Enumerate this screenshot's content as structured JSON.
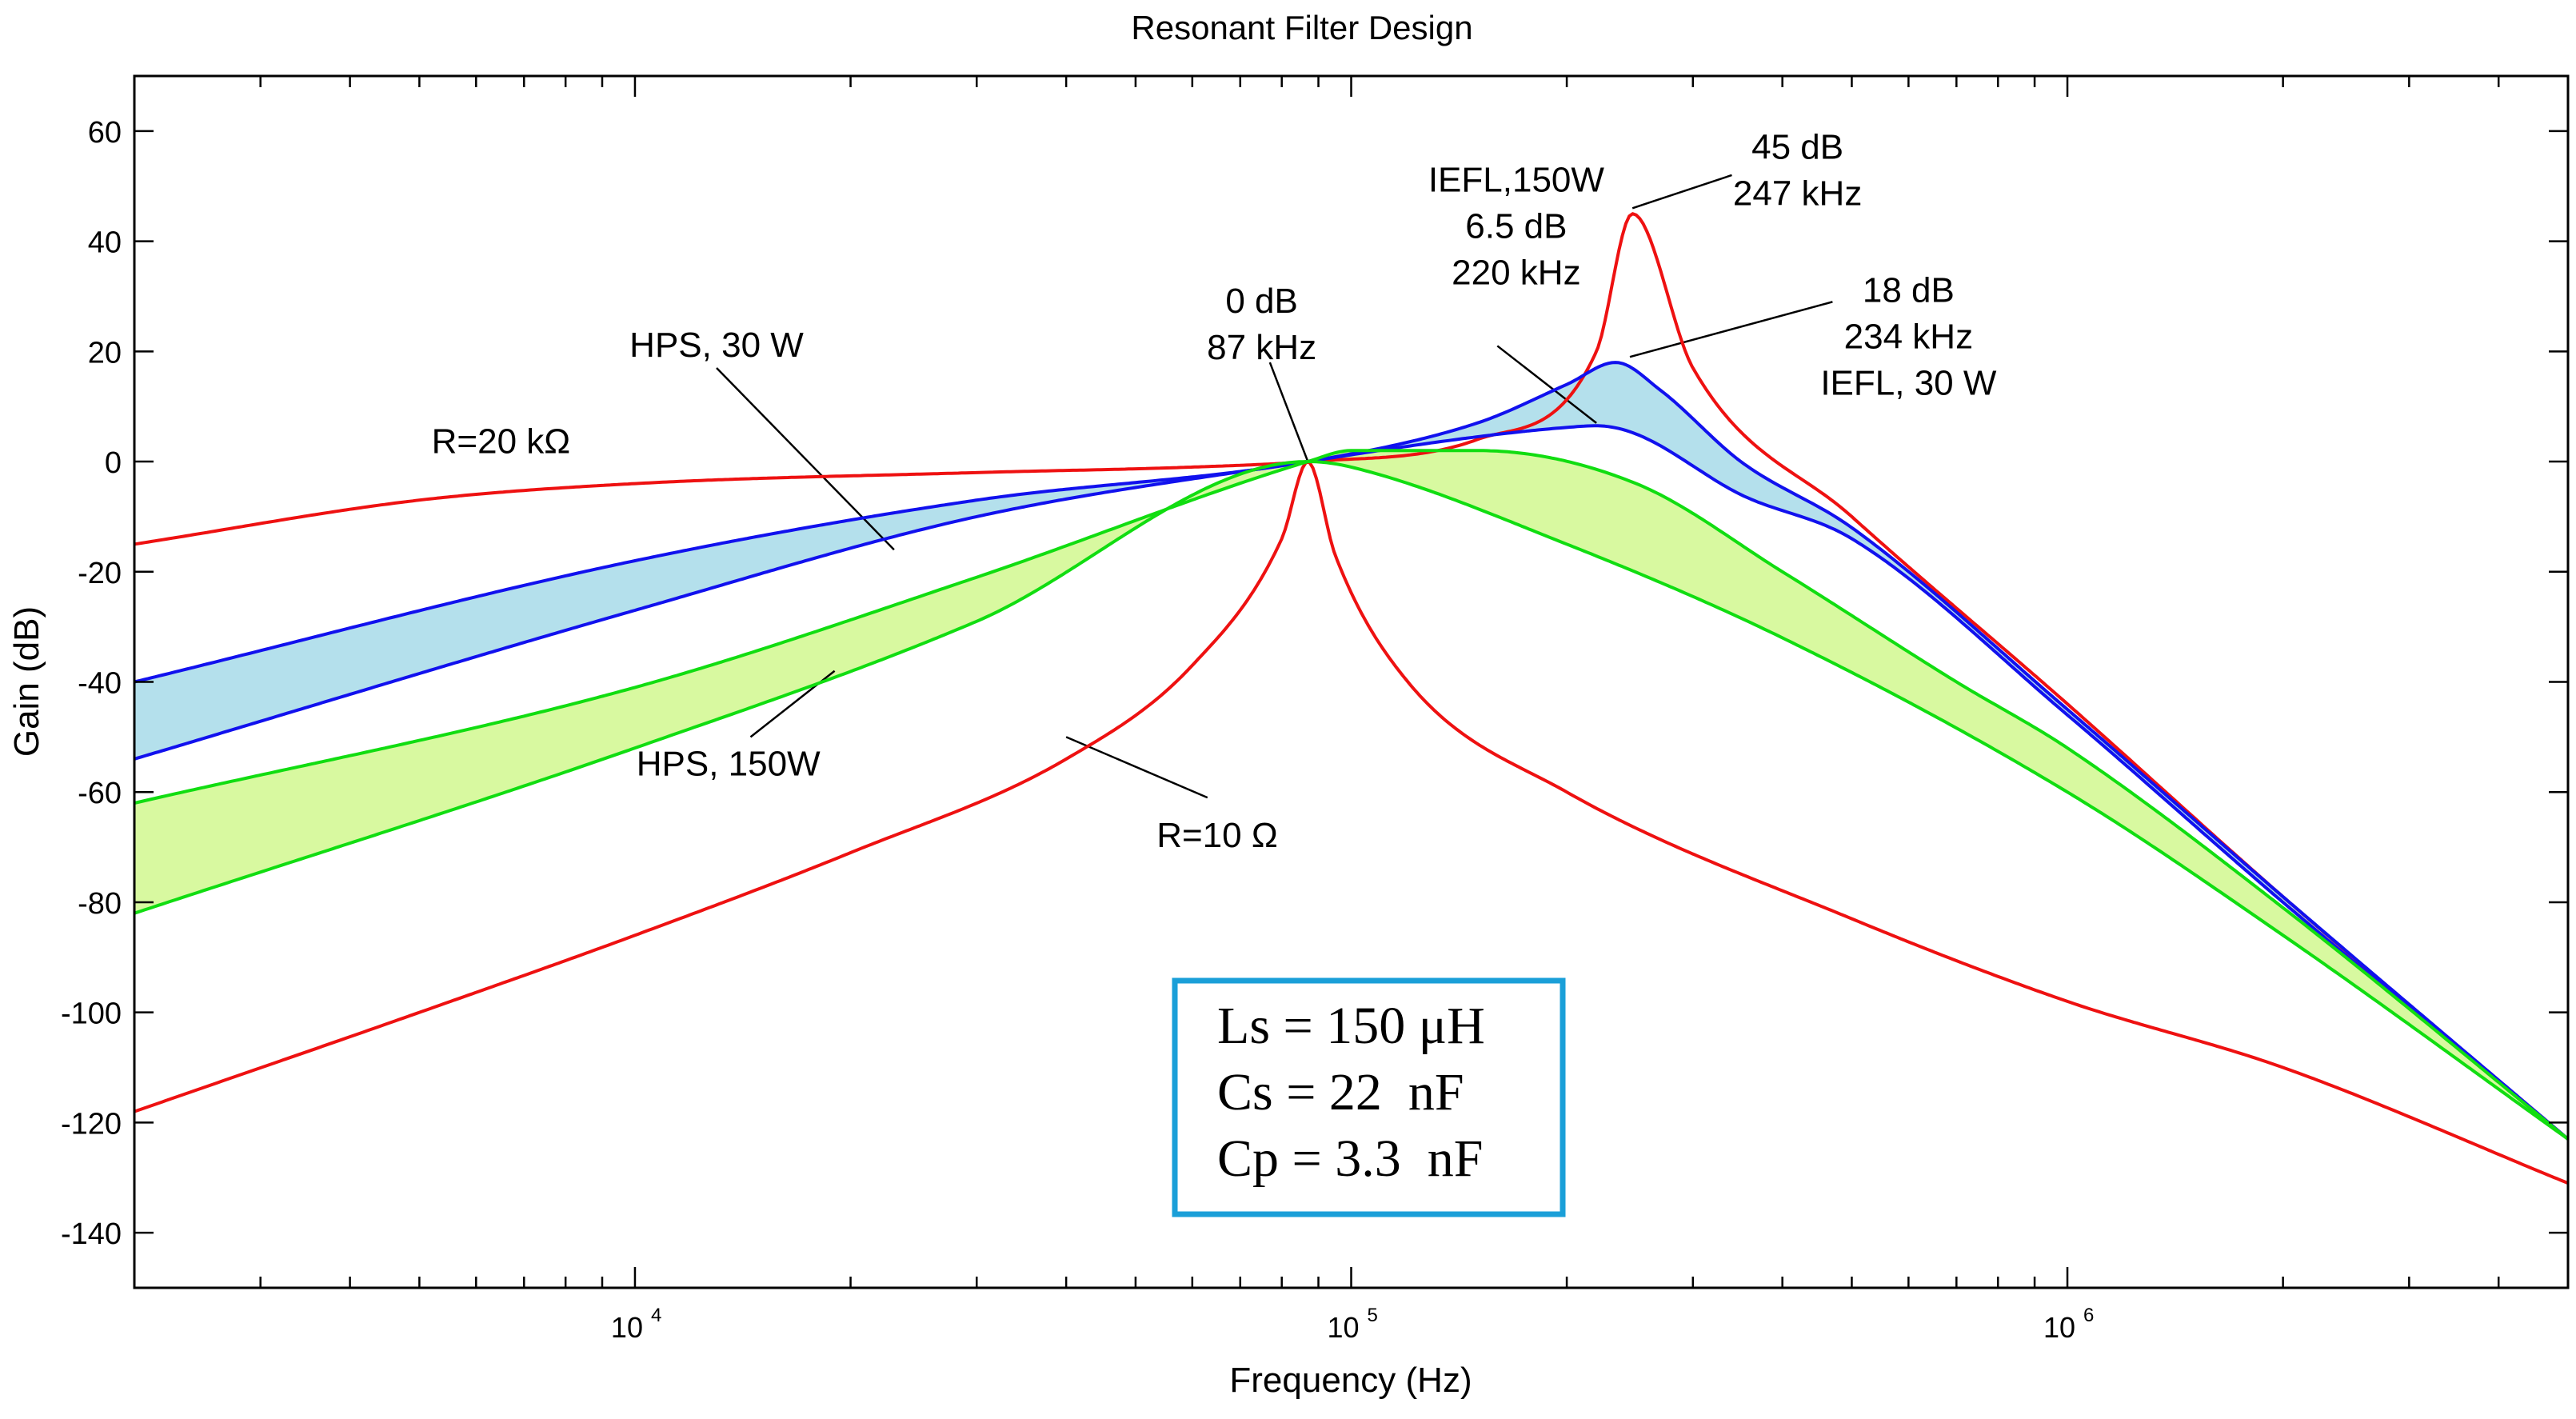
{
  "chart_data": {
    "type": "line",
    "title": "Resonant Filter Design",
    "xlabel": "Frequency (Hz)",
    "ylabel": "Gain (dB)",
    "xscale": "log",
    "xlim": [
      2000,
      5000000
    ],
    "ylim": [
      -150,
      70
    ],
    "grid": false,
    "x_ticks": [
      {
        "value": 10000,
        "base": "10",
        "exp": "4"
      },
      {
        "value": 100000,
        "base": "10",
        "exp": "5"
      },
      {
        "value": 1000000,
        "base": "10",
        "exp": "6"
      }
    ],
    "y_ticks": [
      60,
      40,
      20,
      0,
      -20,
      -40,
      -60,
      -80,
      -100,
      -120,
      -140
    ],
    "series": [
      {
        "name": "R=20 kΩ",
        "color": "#ee1111",
        "x": [
          2000,
          5000,
          10000,
          30000,
          60000,
          87000,
          150000,
          220000,
          247000,
          300000,
          500000,
          1000000,
          2000000,
          5000000
        ],
        "y": [
          -15,
          -7,
          -4,
          -2,
          -1,
          0,
          4,
          20,
          45,
          17,
          -10,
          -44,
          -79,
          -123
        ]
      },
      {
        "name": "R=10 Ω",
        "color": "#ee1111",
        "x": [
          2000,
          5000,
          10000,
          20000,
          40000,
          60000,
          80000,
          87000,
          95000,
          120000,
          200000,
          500000,
          1000000,
          2000000,
          5000000
        ],
        "y": [
          -118,
          -100,
          -86,
          -71,
          -54,
          -37,
          -14,
          0,
          -17,
          -40,
          -60,
          -83,
          -98,
          -110,
          -131
        ]
      },
      {
        "name": "IEFL, 30 W",
        "color": "#1111ee",
        "x": [
          2000,
          10000,
          30000,
          87000,
          150000,
          200000,
          234000,
          270000,
          350000,
          500000,
          1000000,
          2000000,
          5000000
        ],
        "y": [
          -40,
          -18,
          -7,
          0,
          7,
          14,
          18,
          13,
          0,
          -12,
          -45,
          -79,
          -123
        ]
      },
      {
        "name": "IEFL,150W",
        "color": "#1111ee",
        "x": [
          2000,
          10000,
          30000,
          87000,
          150000,
          200000,
          220000,
          250000,
          350000,
          500000,
          1000000,
          2000000,
          5000000
        ],
        "y": [
          -54,
          -27,
          -10,
          0,
          4.5,
          6.2,
          6.5,
          5,
          -6,
          -14,
          -46,
          -80,
          -123
        ]
      },
      {
        "name": "HPS, 30W",
        "color": "#11dd11",
        "x": [
          2000,
          10000,
          30000,
          87000,
          100000,
          150000,
          250000,
          400000,
          700000,
          1000000,
          2000000,
          5000000
        ],
        "y": [
          -62,
          -41,
          -21,
          0,
          2,
          2,
          -4,
          -20,
          -40,
          -52,
          -81,
          -123
        ]
      },
      {
        "name": "HPS, 150W",
        "color": "#11dd11",
        "x": [
          2000,
          10000,
          30000,
          87000,
          100000,
          200000,
          400000,
          1000000,
          2000000,
          5000000
        ],
        "y": [
          -82,
          -52,
          -29,
          0,
          -1,
          -15,
          -32,
          -60,
          -86,
          -123
        ]
      }
    ],
    "fills": [
      {
        "upper": "IEFL, 30 W",
        "lower": "IEFL,150W",
        "color": "#b4e0ec"
      },
      {
        "upper": "HPS, 30W",
        "lower": "HPS, 150W",
        "color": "#d8f9a0"
      }
    ],
    "annotations": [
      {
        "lines": [
          "R=20 kΩ"
        ],
        "x": 6500,
        "y": 1.5
      },
      {
        "lines": [
          "HPS, 30 W"
        ],
        "x": 13000,
        "y": 19
      },
      {
        "lines": [
          "HPS, 150W"
        ],
        "x": 13500,
        "y": -57
      },
      {
        "lines": [
          "R=10 Ω"
        ],
        "x": 65000,
        "y": -70
      },
      {
        "lines": [
          "0 dB",
          "87 kHz"
        ],
        "x": 75000,
        "y": 27
      },
      {
        "lines": [
          "IEFL,150W",
          "6.5 dB",
          "220 kHz"
        ],
        "x": 170000,
        "y": 49
      },
      {
        "lines": [
          "45 dB",
          "247 kHz"
        ],
        "x": 420000,
        "y": 55
      },
      {
        "lines": [
          "18 dB",
          "234 kHz",
          "IEFL, 30 W"
        ],
        "x": 600000,
        "y": 29
      }
    ],
    "parameters": {
      "lines": [
        "Ls = 150 μH",
        "Cs = 22  nF",
        "Cp = 3.3  nF"
      ],
      "border_color": "#1a9fd8"
    }
  }
}
